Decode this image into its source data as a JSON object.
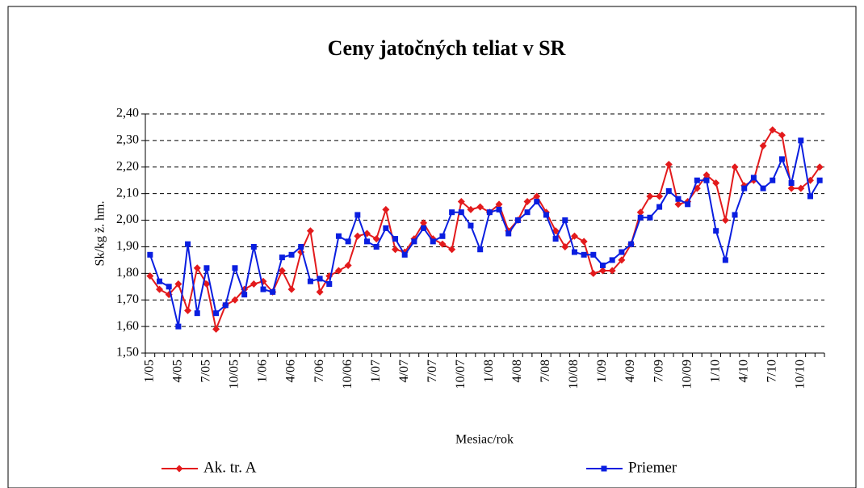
{
  "chart_data": {
    "type": "line",
    "title": "Ceny jatočných teliat v SR",
    "y_label": "Sk/kg ž. hm.",
    "x_label": "Mesiac/rok",
    "categories": [
      "1/05",
      null,
      null,
      "4/05",
      null,
      null,
      "7/05",
      null,
      null,
      "10/05",
      null,
      null,
      "1/06",
      null,
      null,
      "4/06",
      null,
      null,
      "7/06",
      null,
      null,
      "10/06",
      null,
      null,
      "1/07",
      null,
      null,
      "4/07",
      null,
      null,
      "7/07",
      null,
      null,
      "10/07",
      null,
      null,
      "1/08",
      null,
      null,
      "4/08",
      null,
      null,
      "7/08",
      null,
      null,
      "10/08",
      null,
      null,
      "1/09",
      null,
      null,
      "4/09",
      null,
      null,
      "7/09",
      null,
      null,
      "10/09",
      null,
      null,
      "1/10",
      null,
      null,
      "4/10",
      null,
      null,
      "7/10",
      null,
      null,
      "10/10",
      null,
      null
    ],
    "series": [
      {
        "name": "Ak. tr. A",
        "color": "#e31a1c",
        "marker": "diamond",
        "values": [
          1.79,
          1.74,
          1.72,
          1.76,
          1.66,
          1.82,
          1.76,
          1.59,
          1.68,
          1.7,
          1.74,
          1.76,
          1.77,
          1.73,
          1.81,
          1.74,
          1.88,
          1.96,
          1.73,
          1.79,
          1.81,
          1.83,
          1.94,
          1.95,
          1.93,
          2.04,
          1.89,
          1.88,
          1.93,
          1.99,
          1.93,
          1.91,
          1.89,
          2.07,
          2.04,
          2.05,
          2.03,
          2.06,
          1.96,
          2.0,
          2.07,
          2.09,
          2.03,
          1.96,
          1.9,
          1.94,
          1.92,
          1.8,
          1.81,
          1.81,
          1.85,
          1.91,
          2.03,
          2.09,
          2.09,
          2.21,
          2.06,
          2.07,
          2.12,
          2.17,
          2.14,
          2.0,
          2.2,
          2.13,
          2.15,
          2.28,
          2.34,
          2.32,
          2.12,
          2.12,
          2.15,
          2.2
        ]
      },
      {
        "name": "Priemer",
        "color": "#0a1ee0",
        "marker": "square",
        "values": [
          1.87,
          1.77,
          1.75,
          1.6,
          1.91,
          1.65,
          1.82,
          1.65,
          1.68,
          1.82,
          1.72,
          1.9,
          1.74,
          1.73,
          1.86,
          1.87,
          1.9,
          1.77,
          1.78,
          1.76,
          1.94,
          1.92,
          2.02,
          1.92,
          1.9,
          1.97,
          1.93,
          1.87,
          1.92,
          1.97,
          1.92,
          1.94,
          2.03,
          2.03,
          1.98,
          1.89,
          2.03,
          2.04,
          1.95,
          2.0,
          2.03,
          2.07,
          2.02,
          1.93,
          2.0,
          1.88,
          1.87,
          1.87,
          1.83,
          1.85,
          1.88,
          1.91,
          2.01,
          2.01,
          2.05,
          2.11,
          2.08,
          2.06,
          2.15,
          2.15,
          1.96,
          1.85,
          2.02,
          2.12,
          2.16,
          2.12,
          2.15,
          2.23,
          2.14,
          2.3,
          2.09,
          2.15
        ]
      }
    ],
    "ylim": [
      1.5,
      2.4
    ],
    "yticks": [
      {
        "value": 1.5,
        "label": "1,50"
      },
      {
        "value": 1.6,
        "label": "1,60"
      },
      {
        "value": 1.7,
        "label": "1,70"
      },
      {
        "value": 1.8,
        "label": "1,80"
      },
      {
        "value": 1.9,
        "label": "1,90"
      },
      {
        "value": 2.0,
        "label": "2,00"
      },
      {
        "value": 2.1,
        "label": "2,10"
      },
      {
        "value": 2.2,
        "label": "2,20"
      },
      {
        "value": 2.3,
        "label": "2,30"
      },
      {
        "value": 2.4,
        "label": "2,40"
      }
    ],
    "grid": true,
    "legend": "bottom"
  }
}
